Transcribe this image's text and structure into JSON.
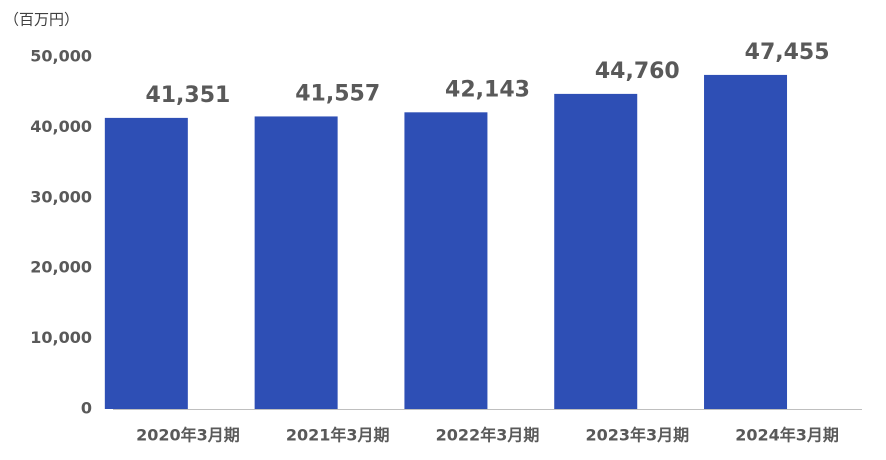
{
  "chart_data": {
    "type": "bar",
    "unit_label": "（百万円）",
    "categories": [
      "2020年3月期",
      "2021年3月期",
      "2022年3月期",
      "2023年3月期",
      "2024年3月期"
    ],
    "values": [
      41351,
      41557,
      42143,
      44760,
      47455
    ],
    "value_labels": [
      "41,351",
      "41,557",
      "42,143",
      "44,760",
      "47,455"
    ],
    "color": "#2e4fb5",
    "ylim": [
      0,
      50000
    ],
    "yticks": [
      0,
      {
        "value": 10000,
        "label": "10,000"
      },
      {
        "value": 20000,
        "label": "20,000"
      },
      {
        "value": 30000,
        "label": "30,000"
      },
      {
        "value": 40000,
        "label": "40,000"
      },
      {
        "value": 50000,
        "label": "50,000"
      }
    ],
    "grid": false
  }
}
